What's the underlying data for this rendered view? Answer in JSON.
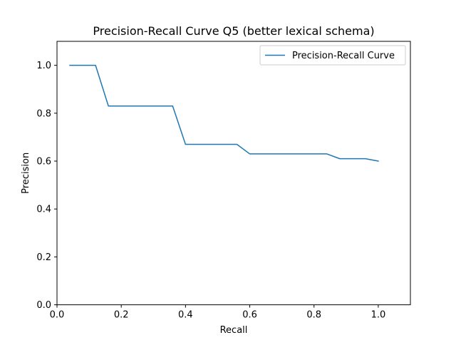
{
  "chart_data": {
    "type": "line",
    "title": "Precision-Recall Curve Q5 (better lexical schema)",
    "xlabel": "Recall",
    "ylabel": "Precision",
    "xlim": [
      0.0,
      1.1
    ],
    "ylim": [
      0.0,
      1.1
    ],
    "xticks": [
      0.0,
      0.2,
      0.4,
      0.6,
      0.8,
      1.0
    ],
    "yticks": [
      0.0,
      0.2,
      0.4,
      0.6,
      0.8,
      1.0
    ],
    "xtick_labels": [
      "0.0",
      "0.2",
      "0.4",
      "0.6",
      "0.8",
      "1.0"
    ],
    "ytick_labels": [
      "0.0",
      "0.2",
      "0.4",
      "0.6",
      "0.8",
      "1.0"
    ],
    "grid": false,
    "legend_position": "upper right",
    "series": [
      {
        "name": "Precision-Recall Curve",
        "color": "#1f77b4",
        "x": [
          0.04,
          0.08,
          0.12,
          0.16,
          0.2,
          0.24,
          0.28,
          0.32,
          0.36,
          0.4,
          0.44,
          0.48,
          0.52,
          0.56,
          0.6,
          0.64,
          0.68,
          0.72,
          0.76,
          0.8,
          0.84,
          0.88,
          0.92,
          0.96,
          1.0
        ],
        "y": [
          1.0,
          1.0,
          1.0,
          0.83,
          0.83,
          0.83,
          0.83,
          0.83,
          0.83,
          0.67,
          0.67,
          0.67,
          0.67,
          0.67,
          0.63,
          0.63,
          0.63,
          0.63,
          0.63,
          0.63,
          0.63,
          0.61,
          0.61,
          0.61,
          0.6
        ]
      }
    ]
  }
}
